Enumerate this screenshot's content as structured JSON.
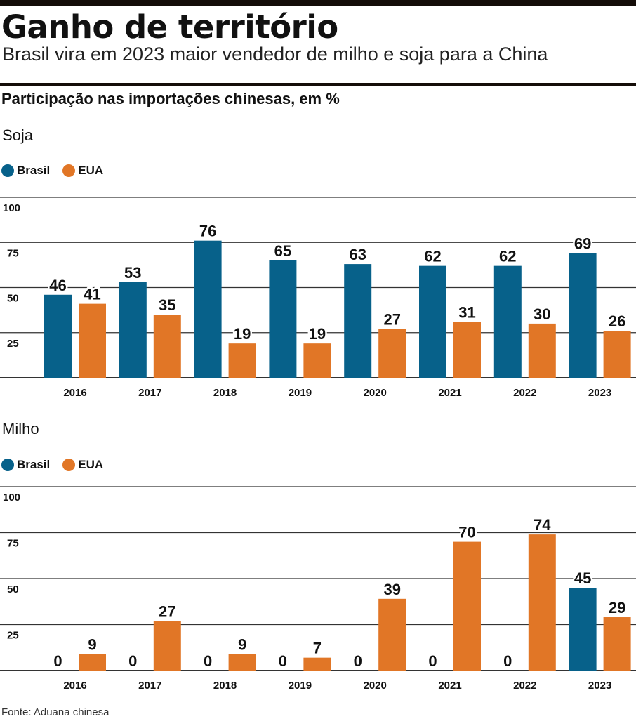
{
  "title": "Ganho de território",
  "subtitle": "Brasil vira em 2023 maior vendedor de milho e soja para a China",
  "header": "Participação nas importações chinesas, em %",
  "source": "Fonte: Aduana chinesa",
  "colors": {
    "Brasil": "#07618a",
    "EUA": "#e17626"
  },
  "chart_data": [
    {
      "type": "bar",
      "title": "Soja",
      "categories": [
        "2016",
        "2017",
        "2018",
        "2019",
        "2020",
        "2021",
        "2022",
        "2023"
      ],
      "series": [
        {
          "name": "Brasil",
          "values": [
            46,
            53,
            76,
            65,
            63,
            62,
            62,
            69
          ]
        },
        {
          "name": "EUA",
          "values": [
            41,
            35,
            19,
            19,
            27,
            31,
            30,
            26
          ]
        }
      ],
      "yticks": [
        "25",
        "50",
        "75",
        "100"
      ],
      "ylim": [
        0,
        100
      ],
      "grid": true,
      "legend": "top-left"
    },
    {
      "type": "bar",
      "title": "Milho",
      "categories": [
        "2016",
        "2017",
        "2018",
        "2019",
        "2020",
        "2021",
        "2022",
        "2023"
      ],
      "series": [
        {
          "name": "Brasil",
          "values": [
            0,
            0,
            0,
            0,
            0,
            0,
            0,
            45
          ]
        },
        {
          "name": "EUA",
          "values": [
            9,
            27,
            9,
            7,
            39,
            70,
            74,
            29
          ]
        }
      ],
      "yticks": [
        "25",
        "50",
        "75",
        "100"
      ],
      "ylim": [
        0,
        100
      ],
      "grid": true,
      "legend": "top-left"
    }
  ]
}
